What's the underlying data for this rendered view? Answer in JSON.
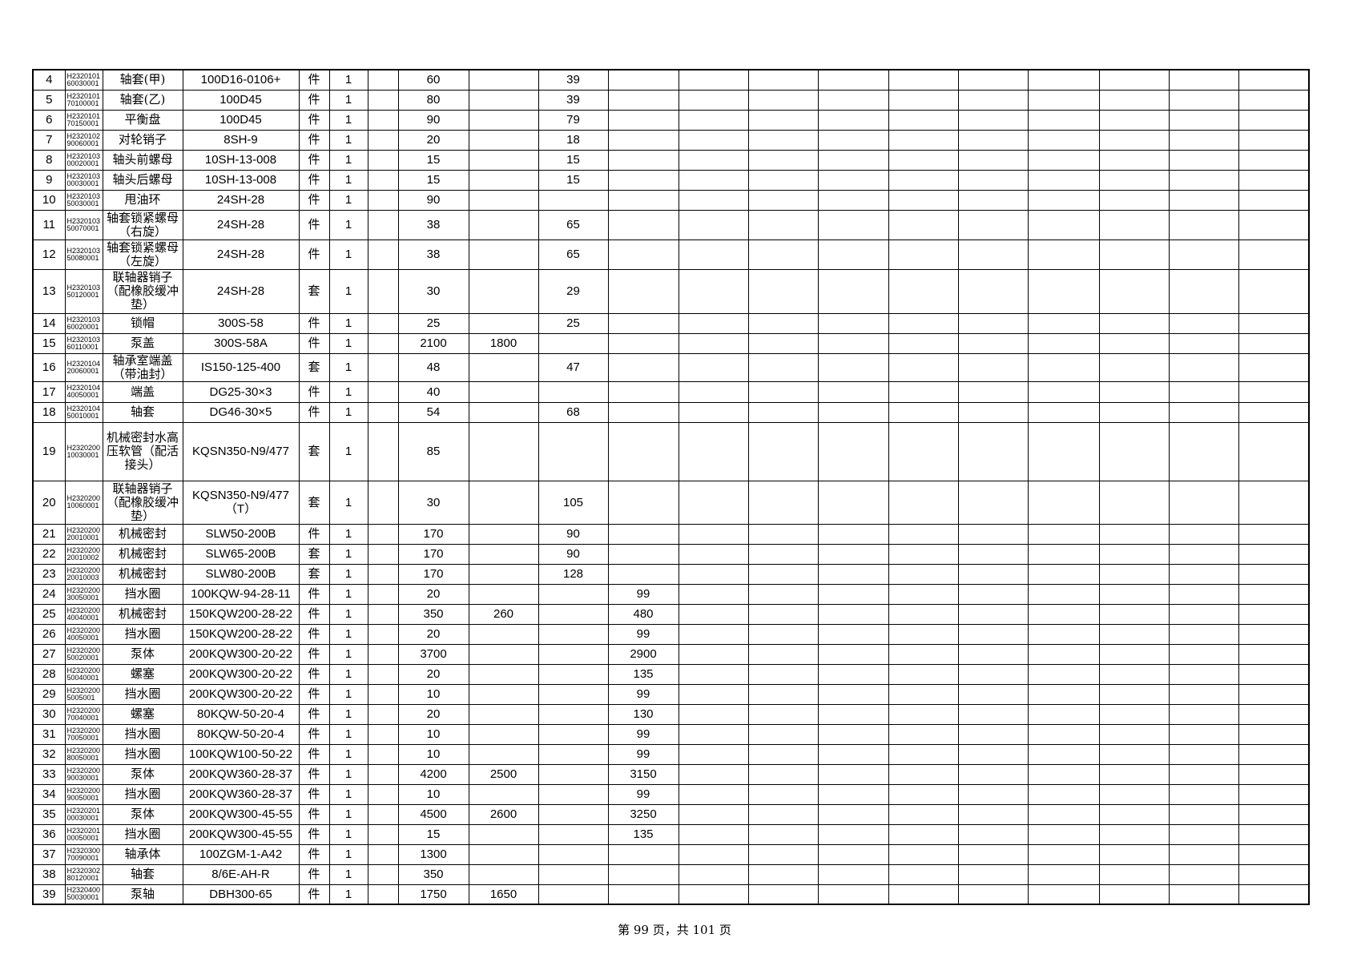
{
  "table": {
    "rows": [
      {
        "no": 4,
        "code": "H232010160030001",
        "name": "轴套(甲)",
        "spec": "100D16-0106+",
        "unit": "件",
        "qty": 1,
        "v1": 60,
        "v3": 39
      },
      {
        "no": 5,
        "code": "H232010170100001",
        "name": "轴套(乙)",
        "spec": "100D45",
        "unit": "件",
        "qty": 1,
        "v1": 80,
        "v3": 39
      },
      {
        "no": 6,
        "code": "H232010170150001",
        "name": "平衡盘",
        "spec": "100D45",
        "unit": "件",
        "qty": 1,
        "v1": 90,
        "v3": 79
      },
      {
        "no": 7,
        "code": "H232010290060001",
        "name": "对轮销子",
        "spec": "8SH-9",
        "unit": "件",
        "qty": 1,
        "v1": 20,
        "v3": 18
      },
      {
        "no": 8,
        "code": "H232010300020001",
        "name": "轴头前螺母",
        "spec": "10SH-13-008",
        "unit": "件",
        "qty": 1,
        "v1": 15,
        "v3": 15
      },
      {
        "no": 9,
        "code": "H232010300030001",
        "name": "轴头后螺母",
        "spec": "10SH-13-008",
        "unit": "件",
        "qty": 1,
        "v1": 15,
        "v3": 15
      },
      {
        "no": 10,
        "code": "H232010350030001",
        "name": "甩油环",
        "spec": "24SH-28",
        "unit": "件",
        "qty": 1,
        "v1": 90
      },
      {
        "no": 11,
        "code": "H232010350070001",
        "name": "轴套锁紧螺母（右旋）",
        "spec": "24SH-28",
        "unit": "件",
        "qty": 1,
        "v1": 38,
        "v3": 65
      },
      {
        "no": 12,
        "code": "H232010350080001",
        "name": "轴套锁紧螺母（左旋）",
        "spec": "24SH-28",
        "unit": "件",
        "qty": 1,
        "v1": 38,
        "v3": 65
      },
      {
        "no": 13,
        "code": "H232010350120001",
        "name": "联轴器销子（配橡胶缓冲垫）",
        "spec": "24SH-28",
        "unit": "套",
        "qty": 1,
        "v1": 30,
        "v3": 29
      },
      {
        "no": 14,
        "code": "H232010360020001",
        "name": "锁帽",
        "spec": "300S-58",
        "unit": "件",
        "qty": 1,
        "v1": 25,
        "v3": 25
      },
      {
        "no": 15,
        "code": "H232010360110001",
        "name": "泵盖",
        "spec": "300S-58A",
        "unit": "件",
        "qty": 1,
        "v1": 2100,
        "v2": 1800
      },
      {
        "no": 16,
        "code": "H232010420060001",
        "name": "轴承室端盖（带油封）",
        "spec": "IS150-125-400",
        "unit": "套",
        "qty": 1,
        "v1": 48,
        "v3": 47
      },
      {
        "no": 17,
        "code": "H232010440050001",
        "name": "端盖",
        "spec": "DG25-30×3",
        "unit": "件",
        "qty": 1,
        "v1": 40
      },
      {
        "no": 18,
        "code": "H232010450010001",
        "name": "轴套",
        "spec": "DG46-30×5",
        "unit": "件",
        "qty": 1,
        "v1": 54,
        "v3": 68
      },
      {
        "no": 19,
        "code": "H232020010030001",
        "name": "机械密封水高压软管（配活接头）",
        "spec": "KQSN350-N9/477",
        "unit": "套",
        "qty": 1,
        "v1": 85
      },
      {
        "no": 20,
        "code": "H232020010060001",
        "name": "联轴器销子（配橡胶缓冲垫）",
        "spec": "KQSN350-N9/477（T）",
        "unit": "套",
        "qty": 1,
        "v1": 30,
        "v3": 105
      },
      {
        "no": 21,
        "code": "H232020020010001",
        "name": "机械密封",
        "spec": "SLW50-200B",
        "unit": "件",
        "qty": 1,
        "v1": 170,
        "v3": 90
      },
      {
        "no": 22,
        "code": "H232020020010002",
        "name": "机械密封",
        "spec": "SLW65-200B",
        "unit": "套",
        "qty": 1,
        "v1": 170,
        "v3": 90
      },
      {
        "no": 23,
        "code": "H232020020010003",
        "name": "机械密封",
        "spec": "SLW80-200B",
        "unit": "套",
        "qty": 1,
        "v1": 170,
        "v3": 128
      },
      {
        "no": 24,
        "code": "H232020030050001",
        "name": "挡水圈",
        "spec": "100KQW-94-28-11",
        "unit": "件",
        "qty": 1,
        "v1": 20,
        "v4": 99
      },
      {
        "no": 25,
        "code": "H232020040040001",
        "name": "机械密封",
        "spec": "150KQW200-28-22",
        "unit": "件",
        "qty": 1,
        "v1": 350,
        "v2": 260,
        "v4": 480
      },
      {
        "no": 26,
        "code": "H232020040050001",
        "name": "挡水圈",
        "spec": "150KQW200-28-22",
        "unit": "件",
        "qty": 1,
        "v1": 20,
        "v4": 99
      },
      {
        "no": 27,
        "code": "H232020050020001",
        "name": "泵体",
        "spec": "200KQW300-20-22",
        "unit": "件",
        "qty": 1,
        "v1": 3700,
        "v4": 2900
      },
      {
        "no": 28,
        "code": "H232020050040001",
        "name": "螺塞",
        "spec": "200KQW300-20-22",
        "unit": "件",
        "qty": 1,
        "v1": 20,
        "v4": 135
      },
      {
        "no": 29,
        "code": "H23202005005001",
        "name": "挡水圈",
        "spec": "200KQW300-20-22",
        "unit": "件",
        "qty": 1,
        "v1": 10,
        "v4": 99
      },
      {
        "no": 30,
        "code": "H232020070040001",
        "name": "螺塞",
        "spec": "80KQW-50-20-4",
        "unit": "件",
        "qty": 1,
        "v1": 20,
        "v4": 130
      },
      {
        "no": 31,
        "code": "H232020070050001",
        "name": "挡水圈",
        "spec": "80KQW-50-20-4",
        "unit": "件",
        "qty": 1,
        "v1": 10,
        "v4": 99
      },
      {
        "no": 32,
        "code": "H232020080050001",
        "name": "挡水圈",
        "spec": "100KQW100-50-22",
        "unit": "件",
        "qty": 1,
        "v1": 10,
        "v4": 99
      },
      {
        "no": 33,
        "code": "H232020090030001",
        "name": "泵体",
        "spec": "200KQW360-28-37",
        "unit": "件",
        "qty": 1,
        "v1": 4200,
        "v2": 2500,
        "v4": 3150
      },
      {
        "no": 34,
        "code": "H232020090050001",
        "name": "挡水圈",
        "spec": "200KQW360-28-37",
        "unit": "件",
        "qty": 1,
        "v1": 10,
        "v4": 99
      },
      {
        "no": 35,
        "code": "H232020100030001",
        "name": "泵体",
        "spec": "200KQW300-45-55",
        "unit": "件",
        "qty": 1,
        "v1": 4500,
        "v2": 2600,
        "v4": 3250
      },
      {
        "no": 36,
        "code": "H232020100050001",
        "name": "挡水圈",
        "spec": "200KQW300-45-55",
        "unit": "件",
        "qty": 1,
        "v1": 15,
        "v4": 135
      },
      {
        "no": 37,
        "code": "H232030070090001",
        "name": "轴承体",
        "spec": "100ZGM-1-A42",
        "unit": "件",
        "qty": 1,
        "v1": 1300
      },
      {
        "no": 38,
        "code": "H232030280120001",
        "name": "轴套",
        "spec": "8/6E-AH-R",
        "unit": "件",
        "qty": 1,
        "v1": 350
      },
      {
        "no": 39,
        "code": "H232040050030001",
        "name": "泵轴",
        "spec": "DBH300-65",
        "unit": "件",
        "qty": 1,
        "v1": 1750,
        "v2": 1650
      }
    ]
  },
  "footer": "第 99 页，共 101 页"
}
